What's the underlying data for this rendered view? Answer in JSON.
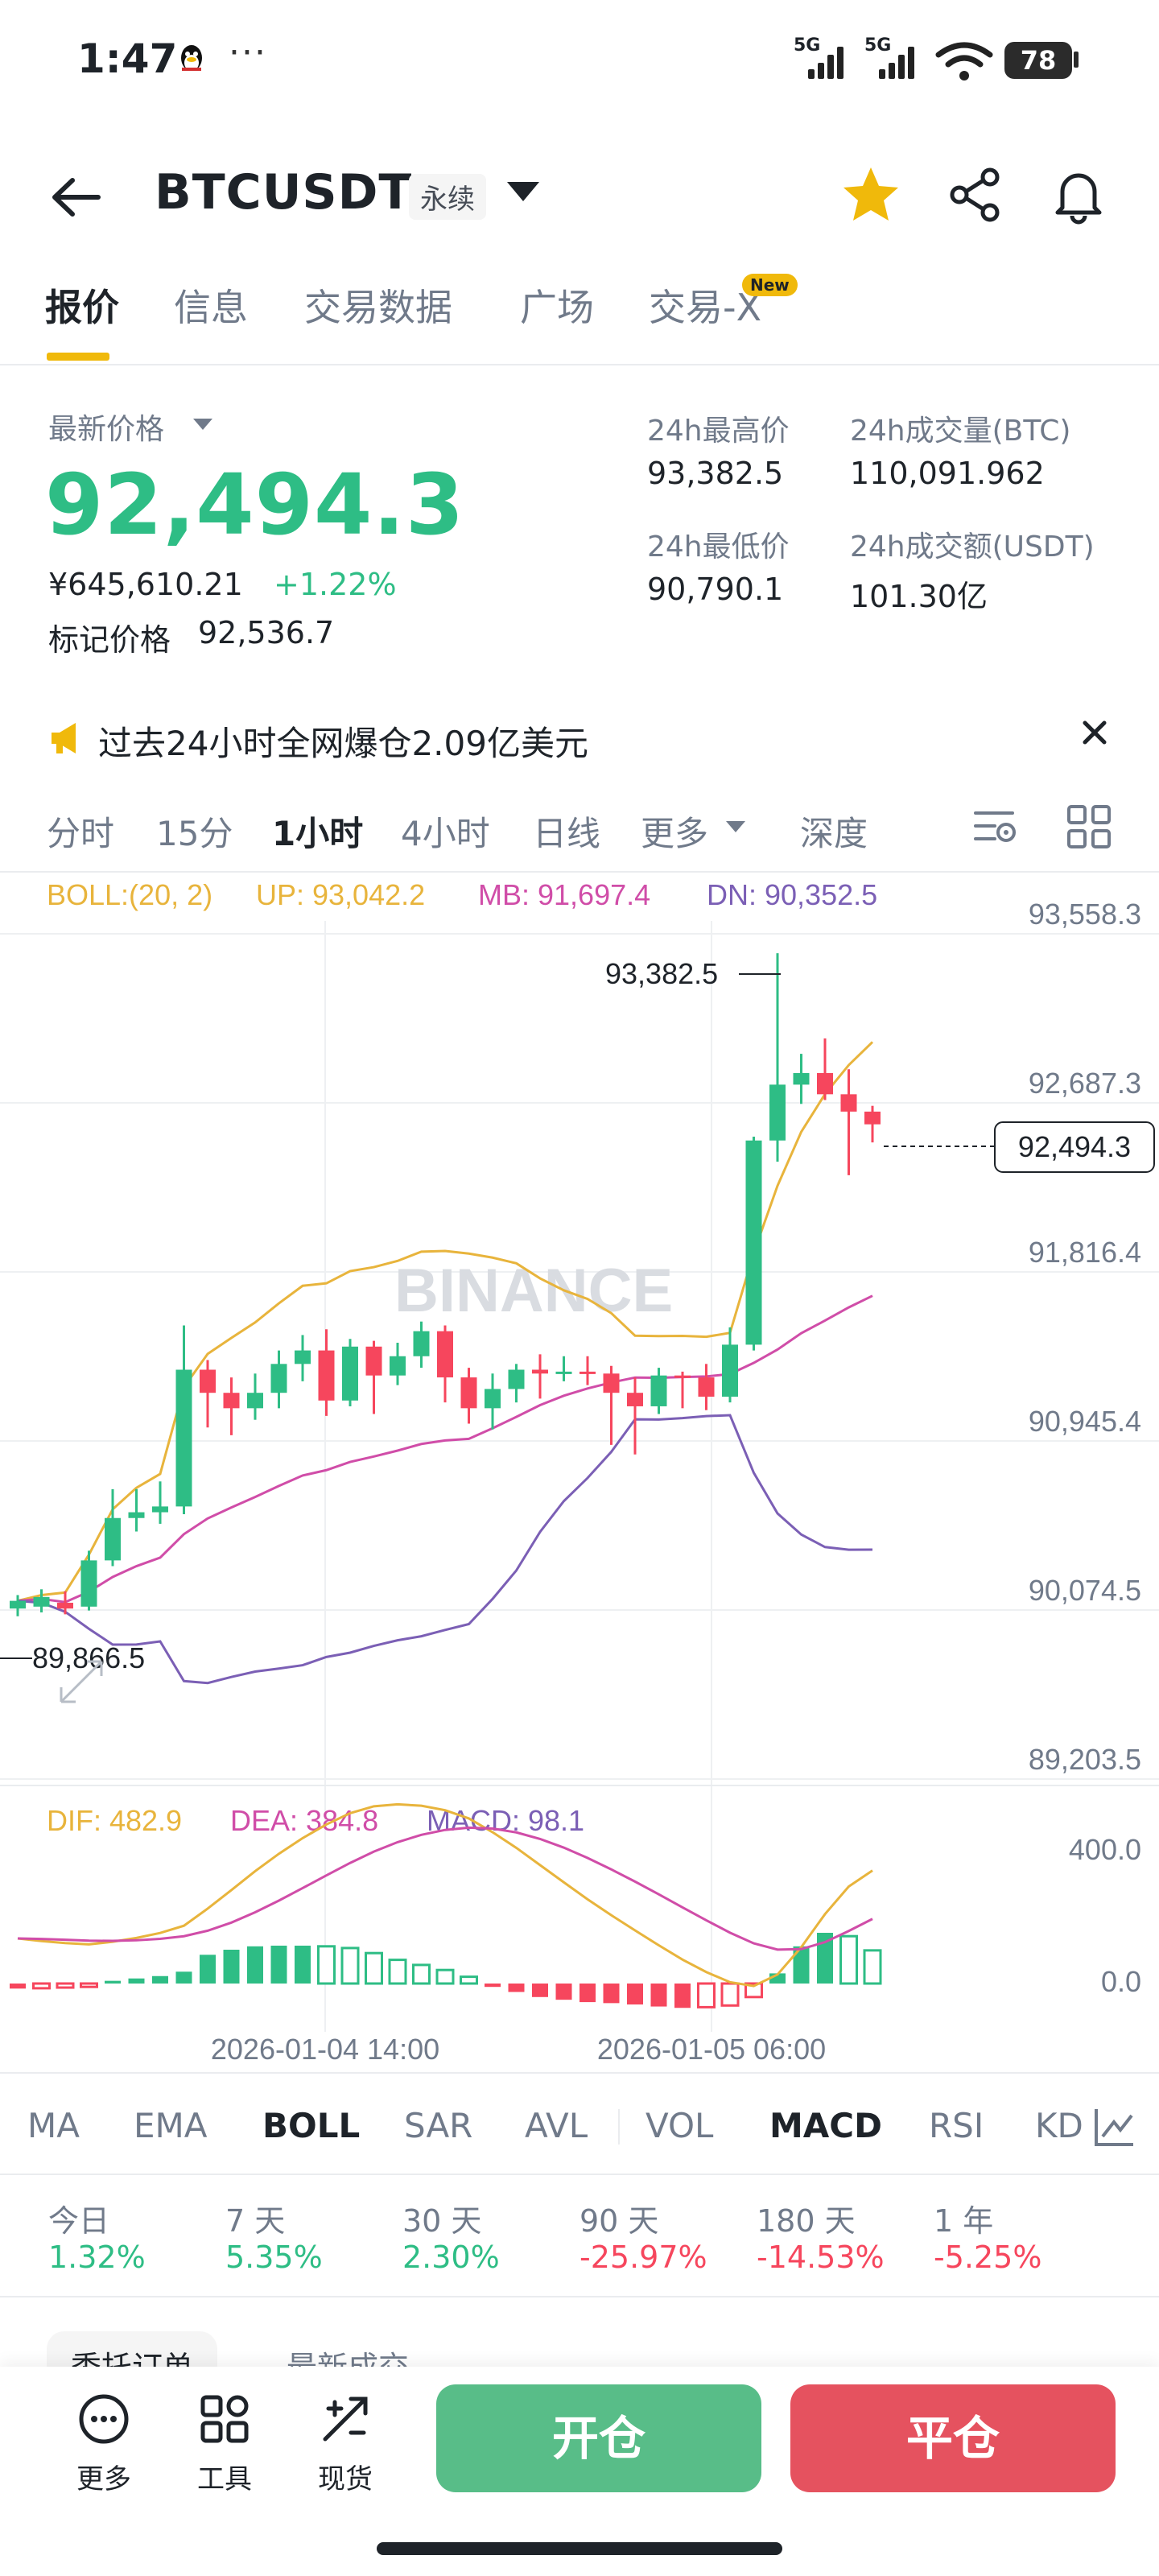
{
  "status_bar": {
    "time": "1:47",
    "dots": "···",
    "sim1": "5G",
    "sim2": "5G",
    "battery": "78"
  },
  "header": {
    "symbol": "BTCUSDT",
    "contract_type": "永续"
  },
  "tabs": [
    "报价",
    "信息",
    "交易数据",
    "广场",
    "交易-X"
  ],
  "new_badge": "New",
  "price": {
    "label": "最新价格",
    "last": "92,494.3",
    "cny": "¥645,610.21",
    "change": "+1.22%",
    "mark_label": "标记价格",
    "mark_value": "92,536.7"
  },
  "stats": {
    "high_label": "24h最高价",
    "high": "93,382.5",
    "low_label": "24h最低价",
    "low": "90,790.1",
    "vol_btc_label": "24h成交量(BTC)",
    "vol_btc": "110,091.962",
    "vol_usdt_label": "24h成交额(USDT)",
    "vol_usdt": "101.30亿"
  },
  "announcement": "过去24小时全网爆仓2.09亿美元",
  "intervals": [
    "分时",
    "15分",
    "1小时",
    "4小时",
    "日线",
    "更多",
    "深度"
  ],
  "indicator_tabs": [
    "MA",
    "EMA",
    "BOLL",
    "SAR",
    "AVL",
    "VOL",
    "MACD",
    "RSI",
    "KD"
  ],
  "performance": [
    {
      "label": "今日",
      "value": "1.32%"
    },
    {
      "label": "7 天",
      "value": "5.35%"
    },
    {
      "label": "30 天",
      "value": "2.30%"
    },
    {
      "label": "90 天",
      "value": "-25.97%"
    },
    {
      "label": "180 天",
      "value": "-14.53%"
    },
    {
      "label": "1 年",
      "value": "-5.25%"
    }
  ],
  "bottom": {
    "more": "更多",
    "tools": "工具",
    "spot": "现货",
    "open": "开仓",
    "close": "平仓",
    "peek_tab_1": "委托订单",
    "peek_tab_2": "最新成交"
  },
  "colors": {
    "up": "#2ebd85",
    "down": "#f6465d",
    "accent": "#f0b90b",
    "boll_up": "#e8b43c",
    "boll_mb": "#d04da8",
    "boll_dn": "#7b5fb5"
  },
  "chart_data": {
    "type": "candlestick",
    "interval": "1小时",
    "watermark": "BINANCE",
    "boll": {
      "label": "BOLL:(20, 2)",
      "up": "UP: 93,042.2",
      "mb": "MB: 91,697.4",
      "dn": "DN: 90,352.5"
    },
    "y_ticks": [
      "93,558.3",
      "92,687.3",
      "91,816.4",
      "90,945.4",
      "90,074.5",
      "89,203.5"
    ],
    "y_range": [
      89203.5,
      93558.3
    ],
    "x_labels": [
      "2026-01-04 14:00",
      "2026-01-05 06:00"
    ],
    "high_marker": "93,382.5",
    "low_marker": "89,866.5",
    "current_price_tag": "92,494.3",
    "candles": [
      [
        89980,
        90020,
        89940,
        90050
      ],
      [
        89990,
        90040,
        89960,
        90080
      ],
      [
        90010,
        89980,
        89950,
        90070
      ],
      [
        89990,
        90230,
        89970,
        90280
      ],
      [
        90230,
        90450,
        90200,
        90600
      ],
      [
        90450,
        90480,
        90380,
        90600
      ],
      [
        90480,
        90510,
        90420,
        90640
      ],
      [
        90510,
        91220,
        90470,
        91450
      ],
      [
        91220,
        91100,
        90920,
        91270
      ],
      [
        91100,
        91020,
        90880,
        91180
      ],
      [
        91020,
        91100,
        90960,
        91200
      ],
      [
        91100,
        91250,
        91020,
        91320
      ],
      [
        91250,
        91320,
        91160,
        91400
      ],
      [
        91320,
        91060,
        90980,
        91430
      ],
      [
        91060,
        91340,
        91030,
        91380
      ],
      [
        91340,
        91190,
        90990,
        91370
      ],
      [
        91190,
        91290,
        91140,
        91360
      ],
      [
        91290,
        91420,
        91230,
        91470
      ],
      [
        91420,
        91180,
        91050,
        91450
      ],
      [
        91180,
        91020,
        90940,
        91230
      ],
      [
        91020,
        91120,
        90910,
        91200
      ],
      [
        91120,
        91220,
        91050,
        91250
      ],
      [
        91220,
        91200,
        91070,
        91300
      ],
      [
        91200,
        91210,
        91160,
        91290
      ],
      [
        91210,
        91200,
        91140,
        91290
      ],
      [
        91200,
        91100,
        90830,
        91240
      ],
      [
        91100,
        91030,
        90780,
        91180
      ],
      [
        91030,
        91190,
        90990,
        91230
      ],
      [
        91190,
        91180,
        91020,
        91210
      ],
      [
        91180,
        91080,
        91010,
        91250
      ],
      [
        91080,
        91350,
        91050,
        91440
      ],
      [
        91350,
        92410,
        91320,
        92430
      ],
      [
        92410,
        92700,
        92300,
        93382
      ],
      [
        92700,
        92760,
        92600,
        92860
      ],
      [
        92760,
        92650,
        92620,
        92940
      ],
      [
        92650,
        92560,
        92230,
        92780
      ],
      [
        92560,
        92494,
        92400,
        92590
      ]
    ],
    "macd": {
      "dif": "DIF: 482.9",
      "dea": "DEA: 384.8",
      "macd": "MACD: 98.1",
      "y_ticks": [
        "400.0",
        "0.0"
      ],
      "hist": [
        -15,
        -14,
        -12,
        -10,
        8,
        15,
        22,
        35,
        85,
        100,
        110,
        112,
        112,
        110,
        105,
        90,
        70,
        55,
        40,
        20,
        -10,
        -25,
        -40,
        -48,
        -55,
        -58,
        -62,
        -68,
        -72,
        -70,
        -65,
        -40,
        30,
        110,
        150,
        140,
        98
      ]
    }
  }
}
